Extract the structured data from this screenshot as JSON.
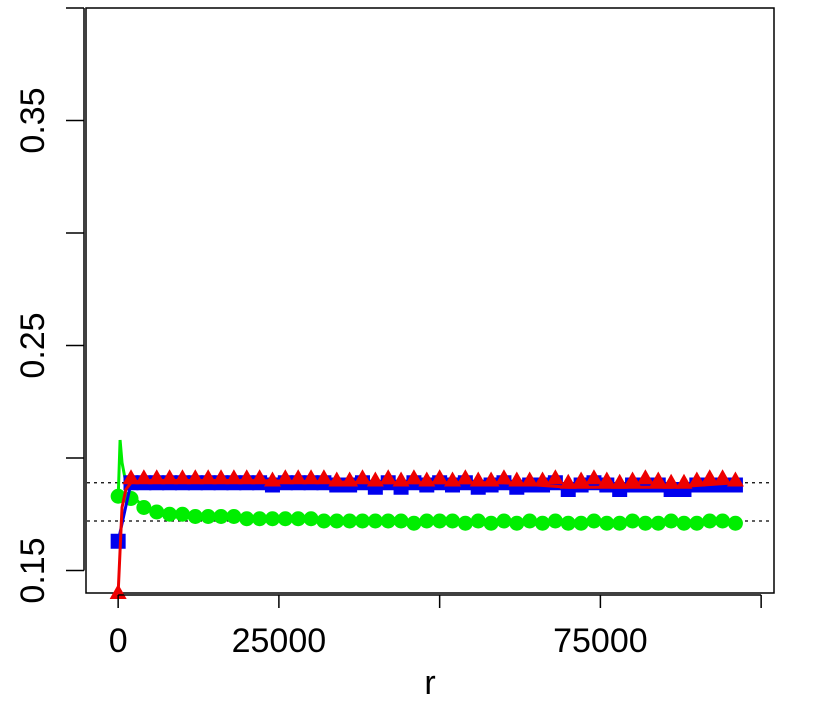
{
  "chart_data": {
    "type": "line",
    "title": "",
    "xlabel": "r",
    "ylabel": "",
    "xlim": [
      -5000,
      102000
    ],
    "ylim": [
      0.14,
      0.4
    ],
    "x_ticks": [
      0,
      25000,
      50000,
      75000,
      100000
    ],
    "x_tick_labels": [
      "0",
      "25000",
      "",
      "75000",
      ""
    ],
    "y_ticks": [
      0.15,
      0.2,
      0.25,
      0.3,
      0.35,
      0.4
    ],
    "y_tick_labels": [
      "0.15",
      "",
      "0.25",
      "",
      "0.35",
      ""
    ],
    "grid": false,
    "legend": "none",
    "reference_lines": [
      {
        "y": 0.189,
        "style": "dotted",
        "color": "#000000"
      },
      {
        "y": 0.172,
        "style": "dotted",
        "color": "#000000"
      }
    ],
    "series": [
      {
        "color": "#00ee00",
        "marker": "circle",
        "points": [
          [
            0,
            0.183
          ],
          [
            2000,
            0.182
          ],
          [
            4000,
            0.178
          ],
          [
            6000,
            0.176
          ],
          [
            8000,
            0.175
          ],
          [
            10000,
            0.175
          ],
          [
            12000,
            0.174
          ],
          [
            14000,
            0.174
          ],
          [
            16000,
            0.174
          ],
          [
            18000,
            0.174
          ],
          [
            20000,
            0.173
          ],
          [
            22000,
            0.173
          ],
          [
            24000,
            0.173
          ],
          [
            26000,
            0.173
          ],
          [
            28000,
            0.173
          ],
          [
            30000,
            0.173
          ],
          [
            32000,
            0.172
          ],
          [
            34000,
            0.172
          ],
          [
            36000,
            0.172
          ],
          [
            38000,
            0.172
          ],
          [
            40000,
            0.172
          ],
          [
            42000,
            0.172
          ],
          [
            44000,
            0.172
          ],
          [
            46000,
            0.171
          ],
          [
            48000,
            0.172
          ],
          [
            50000,
            0.172
          ],
          [
            52000,
            0.172
          ],
          [
            54000,
            0.171
          ],
          [
            56000,
            0.172
          ],
          [
            58000,
            0.171
          ],
          [
            60000,
            0.172
          ],
          [
            62000,
            0.171
          ],
          [
            64000,
            0.172
          ],
          [
            66000,
            0.171
          ],
          [
            68000,
            0.172
          ],
          [
            70000,
            0.171
          ],
          [
            72000,
            0.171
          ],
          [
            74000,
            0.172
          ],
          [
            76000,
            0.171
          ],
          [
            78000,
            0.171
          ],
          [
            80000,
            0.172
          ],
          [
            82000,
            0.171
          ],
          [
            84000,
            0.171
          ],
          [
            86000,
            0.172
          ],
          [
            88000,
            0.171
          ],
          [
            90000,
            0.171
          ],
          [
            92000,
            0.172
          ],
          [
            94000,
            0.172
          ],
          [
            96000,
            0.171
          ]
        ],
        "line": [
          [
            0,
            0.182
          ],
          [
            300,
            0.208
          ],
          [
            600,
            0.198
          ],
          [
            1200,
            0.189
          ],
          [
            2000,
            0.184
          ],
          [
            4000,
            0.178
          ],
          [
            10000,
            0.175
          ],
          [
            20000,
            0.173
          ],
          [
            40000,
            0.172
          ],
          [
            60000,
            0.172
          ],
          [
            80000,
            0.171
          ],
          [
            96000,
            0.171
          ]
        ]
      },
      {
        "color": "#0000ee",
        "marker": "square",
        "points": [
          [
            0,
            0.163
          ],
          [
            2000,
            0.189
          ],
          [
            4000,
            0.189
          ],
          [
            6000,
            0.189
          ],
          [
            8000,
            0.189
          ],
          [
            10000,
            0.189
          ],
          [
            12000,
            0.189
          ],
          [
            14000,
            0.189
          ],
          [
            16000,
            0.189
          ],
          [
            18000,
            0.189
          ],
          [
            20000,
            0.189
          ],
          [
            22000,
            0.189
          ],
          [
            24000,
            0.188
          ],
          [
            26000,
            0.189
          ],
          [
            28000,
            0.189
          ],
          [
            30000,
            0.189
          ],
          [
            32000,
            0.189
          ],
          [
            34000,
            0.188
          ],
          [
            36000,
            0.188
          ],
          [
            38000,
            0.189
          ],
          [
            40000,
            0.187
          ],
          [
            42000,
            0.189
          ],
          [
            44000,
            0.187
          ],
          [
            46000,
            0.189
          ],
          [
            48000,
            0.188
          ],
          [
            50000,
            0.189
          ],
          [
            52000,
            0.188
          ],
          [
            54000,
            0.189
          ],
          [
            56000,
            0.187
          ],
          [
            58000,
            0.188
          ],
          [
            60000,
            0.189
          ],
          [
            62000,
            0.187
          ],
          [
            64000,
            0.188
          ],
          [
            66000,
            0.188
          ],
          [
            68000,
            0.189
          ],
          [
            70000,
            0.186
          ],
          [
            72000,
            0.188
          ],
          [
            74000,
            0.189
          ],
          [
            76000,
            0.188
          ],
          [
            78000,
            0.186
          ],
          [
            80000,
            0.188
          ],
          [
            82000,
            0.188
          ],
          [
            84000,
            0.188
          ],
          [
            86000,
            0.186
          ],
          [
            88000,
            0.186
          ],
          [
            90000,
            0.188
          ],
          [
            92000,
            0.188
          ],
          [
            94000,
            0.188
          ],
          [
            96000,
            0.188
          ]
        ]
      },
      {
        "color": "#ee0000",
        "marker": "triangle",
        "points": [
          [
            0,
            0.14
          ],
          [
            2000,
            0.191
          ],
          [
            4000,
            0.191
          ],
          [
            6000,
            0.191
          ],
          [
            8000,
            0.191
          ],
          [
            10000,
            0.191
          ],
          [
            12000,
            0.191
          ],
          [
            14000,
            0.191
          ],
          [
            16000,
            0.191
          ],
          [
            18000,
            0.191
          ],
          [
            20000,
            0.191
          ],
          [
            22000,
            0.191
          ],
          [
            24000,
            0.19
          ],
          [
            26000,
            0.191
          ],
          [
            28000,
            0.191
          ],
          [
            30000,
            0.191
          ],
          [
            32000,
            0.191
          ],
          [
            34000,
            0.19
          ],
          [
            36000,
            0.19
          ],
          [
            38000,
            0.191
          ],
          [
            40000,
            0.19
          ],
          [
            42000,
            0.191
          ],
          [
            44000,
            0.19
          ],
          [
            46000,
            0.191
          ],
          [
            48000,
            0.19
          ],
          [
            50000,
            0.191
          ],
          [
            52000,
            0.19
          ],
          [
            54000,
            0.191
          ],
          [
            56000,
            0.19
          ],
          [
            58000,
            0.19
          ],
          [
            60000,
            0.191
          ],
          [
            62000,
            0.19
          ],
          [
            64000,
            0.19
          ],
          [
            66000,
            0.19
          ],
          [
            68000,
            0.191
          ],
          [
            70000,
            0.189
          ],
          [
            72000,
            0.19
          ],
          [
            74000,
            0.191
          ],
          [
            76000,
            0.19
          ],
          [
            78000,
            0.189
          ],
          [
            80000,
            0.19
          ],
          [
            82000,
            0.191
          ],
          [
            84000,
            0.19
          ],
          [
            86000,
            0.189
          ],
          [
            88000,
            0.189
          ],
          [
            90000,
            0.19
          ],
          [
            92000,
            0.191
          ],
          [
            94000,
            0.191
          ],
          [
            96000,
            0.19
          ]
        ],
        "line": [
          [
            0,
            0.14
          ],
          [
            600,
            0.178
          ],
          [
            1200,
            0.186
          ],
          [
            2000,
            0.189
          ],
          [
            4000,
            0.19
          ],
          [
            20000,
            0.19
          ],
          [
            40000,
            0.189
          ],
          [
            60000,
            0.189
          ],
          [
            70000,
            0.187
          ],
          [
            78000,
            0.187
          ],
          [
            86000,
            0.187
          ],
          [
            96000,
            0.189
          ]
        ]
      }
    ]
  }
}
